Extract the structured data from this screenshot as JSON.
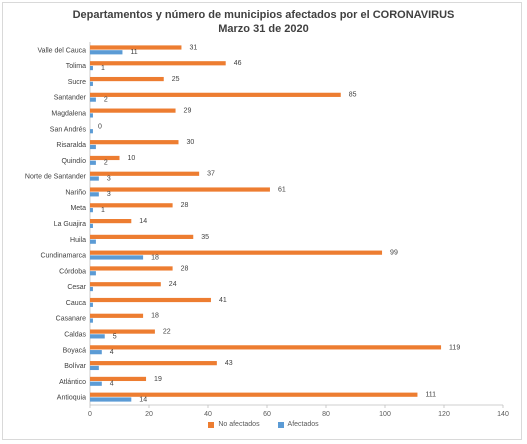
{
  "chart_data": {
    "type": "bar",
    "orientation": "horizontal",
    "title_line1": "Departamentos y número de municipios afectados por el CORONAVIRUS",
    "title_line2": "Marzo 31 de 2020",
    "categories": [
      "Valle del Cauca",
      "Tolima",
      "Sucre",
      "Santander",
      "Magdalena",
      "San Andrés",
      "Risaralda",
      "Quindío",
      "Norte de Santander",
      "Nariño",
      "Meta",
      "La Guajira",
      "Huila",
      "Cundinamarca",
      "Córdoba",
      "Cesar",
      "Cauca",
      "Casanare",
      "Caldas",
      "Boyacá",
      "Bolívar",
      "Atlántico",
      "Antioquia"
    ],
    "series": [
      {
        "name": "No afectados",
        "color": "#ed7d31",
        "values": [
          31,
          46,
          25,
          85,
          29,
          0,
          30,
          10,
          37,
          61,
          28,
          14,
          35,
          99,
          28,
          24,
          41,
          18,
          22,
          119,
          43,
          19,
          111
        ],
        "labels": [
          "31",
          "46",
          "25",
          "85",
          "29",
          "0",
          "30",
          "10",
          "37",
          "61",
          "28",
          "14",
          "35",
          "99",
          "28",
          "24",
          "41",
          "18",
          "22",
          "119",
          "43",
          "19",
          "111"
        ]
      },
      {
        "name": "Afectados",
        "color": "#5b9bd5",
        "values": [
          11,
          1,
          1,
          2,
          1,
          1,
          2,
          2,
          3,
          3,
          1,
          1,
          2,
          18,
          2,
          1,
          1,
          1,
          5,
          4,
          3,
          4,
          14
        ],
        "labels": [
          "11",
          "1",
          "",
          "2",
          "",
          "",
          "",
          "2",
          "3",
          "3",
          "1",
          "",
          "",
          "18",
          "",
          "",
          "",
          "",
          "5",
          "4",
          "",
          "4",
          "14"
        ]
      }
    ],
    "xlim": [
      0,
      140
    ],
    "xticks": [
      "0",
      "20",
      "40",
      "60",
      "80",
      "100",
      "120",
      "140"
    ],
    "grid": false,
    "legend_position": "bottom"
  }
}
